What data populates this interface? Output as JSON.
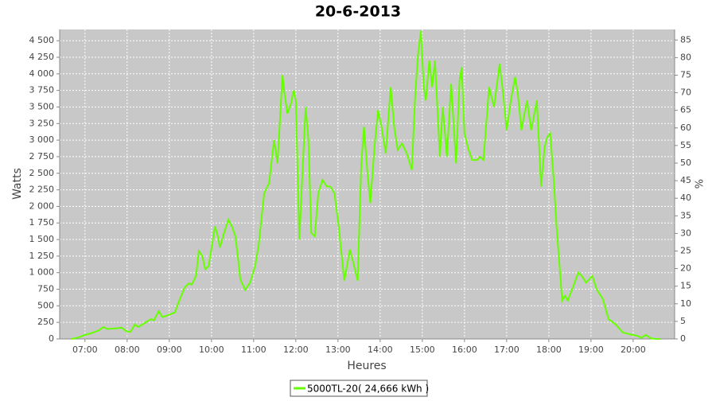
{
  "chart_data": {
    "type": "line",
    "title": "20-6-2013",
    "x_label": "Heures",
    "y_label": "Watts",
    "y2_label": "%",
    "x": [
      "06:41",
      "06:50",
      "07:00",
      "07:10",
      "07:20",
      "07:26",
      "07:32",
      "07:45",
      "07:52",
      "08:00",
      "08:05",
      "08:11",
      "08:16",
      "08:25",
      "08:34",
      "08:38",
      "08:45",
      "08:50",
      "08:56",
      "09:08",
      "09:15",
      "09:22",
      "09:28",
      "09:32",
      "09:38",
      "09:42",
      "09:47",
      "09:51",
      "09:56",
      "10:05",
      "10:09",
      "10:12",
      "10:18",
      "10:24",
      "10:29",
      "10:34",
      "10:38",
      "10:41",
      "10:48",
      "10:55",
      "11:02",
      "11:07",
      "11:15",
      "11:22",
      "11:29",
      "11:34",
      "11:41",
      "11:44",
      "11:48",
      "11:53",
      "11:57",
      "12:00",
      "12:05",
      "12:09",
      "12:14",
      "12:18",
      "12:22",
      "12:27",
      "12:32",
      "12:38",
      "12:44",
      "12:49",
      "12:55",
      "13:01",
      "13:09",
      "13:17",
      "13:23",
      "13:28",
      "13:33",
      "13:37",
      "13:42",
      "13:46",
      "13:52",
      "13:57",
      "14:02",
      "14:08",
      "14:15",
      "14:20",
      "14:25",
      "14:31",
      "14:38",
      "14:45",
      "14:50",
      "14:54",
      "14:58",
      "15:02",
      "15:05",
      "15:10",
      "15:14",
      "15:18",
      "15:25",
      "15:29",
      "15:35",
      "15:41",
      "15:48",
      "15:53",
      "15:56",
      "16:00",
      "16:06",
      "16:11",
      "16:18",
      "16:22",
      "16:27",
      "16:35",
      "16:42",
      "16:50",
      "16:55",
      "17:00",
      "17:06",
      "17:12",
      "17:16",
      "17:21",
      "17:29",
      "17:35",
      "17:43",
      "17:49",
      "17:54",
      "17:58",
      "18:02",
      "18:07",
      "18:11",
      "18:19",
      "18:23",
      "18:27",
      "18:35",
      "18:42",
      "18:47",
      "18:53",
      "19:02",
      "19:08",
      "19:17",
      "19:25",
      "19:35",
      "19:45",
      "19:55",
      "20:05",
      "20:12",
      "20:18",
      "20:25",
      "20:32",
      "20:39"
    ],
    "series": [
      {
        "name": "5000TL-20( 24,666 kWh )",
        "color": "#66ff00",
        "values": [
          0,
          20,
          60,
          90,
          130,
          180,
          150,
          160,
          170,
          110,
          110,
          220,
          180,
          240,
          300,
          280,
          420,
          330,
          350,
          400,
          600,
          780,
          840,
          820,
          950,
          1330,
          1250,
          1050,
          1100,
          1700,
          1550,
          1380,
          1600,
          1800,
          1700,
          1550,
          1200,
          900,
          740,
          850,
          1100,
          1400,
          2200,
          2350,
          3000,
          2650,
          3980,
          3700,
          3400,
          3550,
          3750,
          3600,
          1500,
          2400,
          3500,
          3000,
          1600,
          1550,
          2200,
          2400,
          2300,
          2300,
          2200,
          1700,
          880,
          1350,
          1100,
          880,
          2600,
          3200,
          2500,
          2050,
          2900,
          3450,
          3200,
          2800,
          3800,
          3200,
          2850,
          2950,
          2800,
          2550,
          3700,
          4300,
          4650,
          3800,
          3600,
          4200,
          3800,
          4200,
          2750,
          3500,
          2750,
          3850,
          2650,
          3900,
          4100,
          3100,
          2850,
          2700,
          2700,
          2750,
          2700,
          3800,
          3500,
          4150,
          3700,
          3150,
          3600,
          3950,
          3700,
          3150,
          3600,
          3150,
          3600,
          2300,
          2900,
          3050,
          3100,
          2400,
          1700,
          580,
          650,
          580,
          800,
          1000,
          950,
          850,
          950,
          750,
          600,
          300,
          220,
          100,
          70,
          50,
          20,
          60,
          10,
          0,
          0
        ]
      }
    ],
    "xlim": [
      "06:24",
      "20:59"
    ],
    "xticks": [
      "07:00",
      "08:00",
      "09:00",
      "10:00",
      "11:00",
      "12:00",
      "13:00",
      "14:00",
      "15:00",
      "16:00",
      "17:00",
      "18:00",
      "19:00",
      "20:00"
    ],
    "ylim": [
      0,
      4670
    ],
    "yticks": [
      0,
      250,
      500,
      750,
      {
        "value": 1000,
        "label": "1 000"
      },
      {
        "value": 1250,
        "label": "1 250"
      },
      {
        "value": 1500,
        "label": "1 500"
      },
      {
        "value": 1750,
        "label": "1 750"
      },
      {
        "value": 2000,
        "label": "2 000"
      },
      {
        "value": 2250,
        "label": "2 250"
      },
      {
        "value": 2500,
        "label": "2 500"
      },
      {
        "value": 2750,
        "label": "2 750"
      },
      {
        "value": 3000,
        "label": "3 000"
      },
      {
        "value": 3250,
        "label": "3 250"
      },
      {
        "value": 3500,
        "label": "3 500"
      },
      {
        "value": 3750,
        "label": "3 750"
      },
      {
        "value": 4000,
        "label": "4 000"
      },
      {
        "value": 4250,
        "label": "4 250"
      },
      {
        "value": 4500,
        "label": "4 500"
      }
    ],
    "y2lim": [
      0,
      88
    ],
    "y2ticks": [
      0,
      5,
      10,
      15,
      20,
      25,
      30,
      35,
      40,
      45,
      50,
      55,
      60,
      65,
      70,
      75,
      80,
      85
    ],
    "grid": true,
    "legend": "bottom"
  }
}
